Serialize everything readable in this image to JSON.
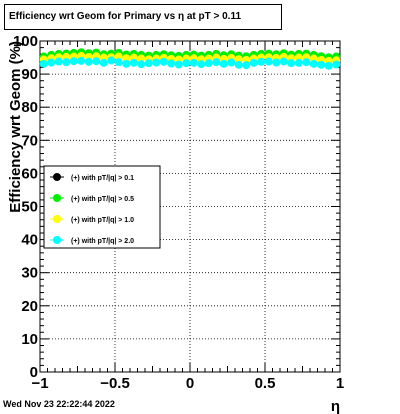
{
  "title": "Efficiency wrt Geom for Primary vs   η at pT > 0.11",
  "timestamp": "Wed Nov 23 22:22:44 2022",
  "chart_data": {
    "type": "scatter",
    "xlabel": "η",
    "ylabel": "Efficiency wrt Geom (%)",
    "xlim": [
      -1,
      1
    ],
    "ylim": [
      0,
      100
    ],
    "grid": true,
    "legend_position": "left-middle",
    "x_ticks": [
      "−1",
      "−0.5",
      "0",
      "0.5",
      "1"
    ],
    "y_ticks": [
      "0",
      "10",
      "20",
      "30",
      "40",
      "50",
      "60",
      "70",
      "80",
      "90",
      "100"
    ],
    "x": [
      -0.975,
      -0.925,
      -0.875,
      -0.825,
      -0.775,
      -0.725,
      -0.675,
      -0.625,
      -0.575,
      -0.525,
      -0.475,
      -0.425,
      -0.375,
      -0.325,
      -0.275,
      -0.225,
      -0.175,
      -0.125,
      -0.075,
      -0.025,
      0.025,
      0.075,
      0.125,
      0.175,
      0.225,
      0.275,
      0.325,
      0.375,
      0.425,
      0.475,
      0.525,
      0.575,
      0.625,
      0.675,
      0.725,
      0.775,
      0.825,
      0.875,
      0.925,
      0.975
    ],
    "series": [
      {
        "name": "(+) with pT/|q| > 0.1",
        "color": "#000000",
        "values": [
          95.2,
          95.6,
          95.9,
          96.0,
          96.2,
          96.4,
          96.1,
          96.3,
          95.8,
          96.0,
          96.2,
          95.7,
          95.9,
          95.6,
          95.4,
          95.6,
          95.8,
          95.5,
          95.3,
          95.6,
          95.7,
          95.4,
          95.6,
          95.9,
          95.5,
          95.8,
          95.4,
          95.2,
          95.6,
          95.9,
          96.0,
          95.8,
          96.1,
          95.7,
          95.9,
          96.0,
          95.6,
          95.2,
          94.9,
          95.1
        ]
      },
      {
        "name": "(+) with pT/|q| > 0.5",
        "color": "#00ee00",
        "values": [
          95.3,
          95.8,
          96.1,
          96.2,
          96.4,
          96.6,
          96.3,
          96.5,
          96.0,
          96.2,
          96.4,
          95.9,
          96.1,
          95.8,
          95.6,
          95.8,
          96.0,
          95.7,
          95.5,
          95.8,
          95.9,
          95.6,
          95.8,
          96.1,
          95.7,
          96.0,
          95.6,
          95.4,
          95.8,
          96.1,
          96.2,
          96.0,
          96.3,
          95.9,
          96.1,
          96.2,
          95.8,
          95.4,
          95.1,
          95.3
        ]
      },
      {
        "name": "(+) with pT/|q| > 1.0",
        "color": "#ffff00",
        "values": [
          94.4,
          94.8,
          95.1,
          95.2,
          95.3,
          95.5,
          95.2,
          95.4,
          95.0,
          95.1,
          95.3,
          94.8,
          95.0,
          94.7,
          94.5,
          94.7,
          94.9,
          94.6,
          94.4,
          94.7,
          94.8,
          94.5,
          94.7,
          95.0,
          94.6,
          94.9,
          94.5,
          94.3,
          94.7,
          95.0,
          95.1,
          94.9,
          95.2,
          94.8,
          95.0,
          95.1,
          94.7,
          94.3,
          94.0,
          94.2
        ]
      },
      {
        "name": "(+) with pT/|q| > 2.0",
        "color": "#00ffff",
        "values": [
          93.1,
          93.5,
          93.8,
          93.6,
          93.9,
          94.0,
          93.7,
          93.9,
          93.4,
          94.1,
          93.6,
          93.1,
          93.4,
          93.0,
          93.3,
          93.5,
          93.7,
          93.2,
          92.9,
          93.3,
          93.4,
          93.0,
          93.3,
          93.6,
          93.1,
          93.5,
          92.8,
          92.7,
          93.4,
          93.7,
          93.8,
          93.5,
          93.8,
          93.3,
          93.4,
          93.6,
          93.1,
          92.8,
          92.5,
          92.9
        ]
      }
    ]
  }
}
